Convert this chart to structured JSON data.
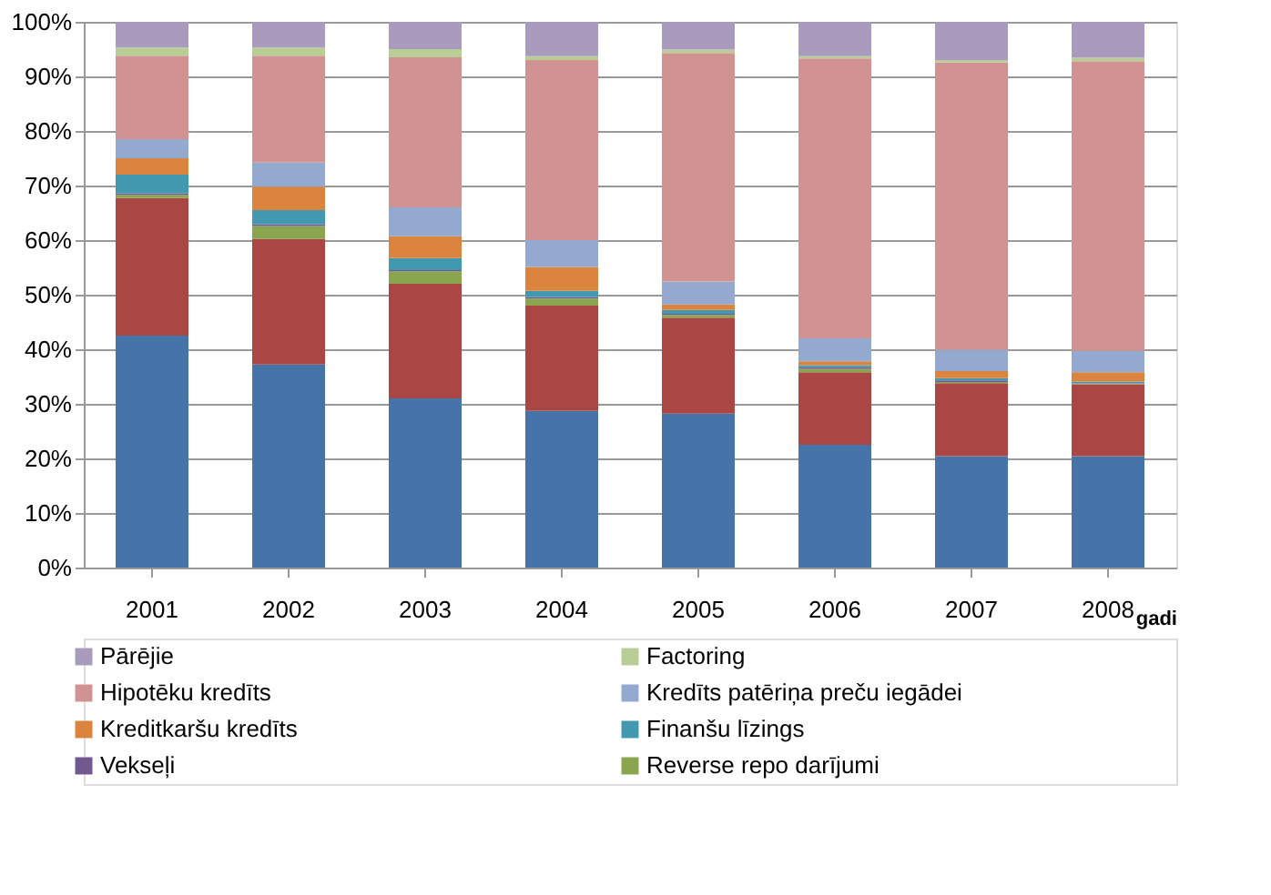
{
  "chart_data": {
    "type": "bar",
    "stacked": true,
    "xlabel": "gadi",
    "categories": [
      "2001",
      "2002",
      "2003",
      "2004",
      "2005",
      "2006",
      "2007",
      "2008"
    ],
    "ylim": [
      0,
      100
    ],
    "yticks": [
      {
        "value": 0,
        "label": "0%"
      },
      {
        "value": 10,
        "label": "10%"
      },
      {
        "value": 20,
        "label": "20%"
      },
      {
        "value": 30,
        "label": "30%"
      },
      {
        "value": 40,
        "label": "40%"
      },
      {
        "value": 50,
        "label": "50%"
      },
      {
        "value": 60,
        "label": "60%"
      },
      {
        "value": 70,
        "label": "70%"
      },
      {
        "value": 80,
        "label": "80%"
      },
      {
        "value": 90,
        "label": "90%"
      },
      {
        "value": 100,
        "label": "100%"
      }
    ],
    "grid": "y",
    "legend": "bottom",
    "series": [
      {
        "color": "#4674a8",
        "values": [
          42.5,
          37.2,
          31.0,
          28.7,
          28.2,
          22.5,
          20.4,
          20.4
        ]
      },
      {
        "color": "#aa4744",
        "values": [
          25.2,
          23.0,
          21.0,
          19.3,
          17.6,
          13.3,
          13.4,
          13.2
        ]
      },
      {
        "name": "Reverse repo darījumi",
        "color": "#89a54e",
        "values": [
          0.6,
          2.4,
          2.3,
          1.3,
          0.5,
          0.6,
          0.2,
          0.1
        ]
      },
      {
        "name": "Vekseļi",
        "color": "#71588f",
        "values": [
          0.3,
          0.3,
          0.2,
          0.3,
          0.2,
          0.3,
          0.3,
          0.1
        ]
      },
      {
        "name": "Finanšu līzings",
        "color": "#4198af",
        "values": [
          3.4,
          2.6,
          2.2,
          1.1,
          0.7,
          0.4,
          0.4,
          0.3
        ]
      },
      {
        "name": "Kreditkaršu kredīts",
        "color": "#db843d",
        "values": [
          3.0,
          4.3,
          4.0,
          4.4,
          1.0,
          0.7,
          1.3,
          1.7
        ]
      },
      {
        "name": "Kredīts patēriņa preču iegādei",
        "color": "#93a9cf",
        "values": [
          3.5,
          4.4,
          5.3,
          4.9,
          4.2,
          4.2,
          3.9,
          3.9
        ]
      },
      {
        "name": "Hipotēku kredīts",
        "color": "#d19392",
        "values": [
          15.3,
          19.6,
          27.5,
          33.0,
          41.9,
          51.3,
          52.7,
          53.1
        ]
      },
      {
        "name": "Factoring",
        "color": "#b9cd96",
        "values": [
          1.5,
          1.5,
          1.5,
          0.7,
          0.6,
          0.4,
          0.4,
          0.6
        ]
      },
      {
        "name": "Pārējie",
        "color": "#a99bbd",
        "values": [
          4.7,
          4.7,
          5.0,
          6.3,
          5.1,
          6.3,
          7.0,
          6.6
        ]
      }
    ]
  }
}
